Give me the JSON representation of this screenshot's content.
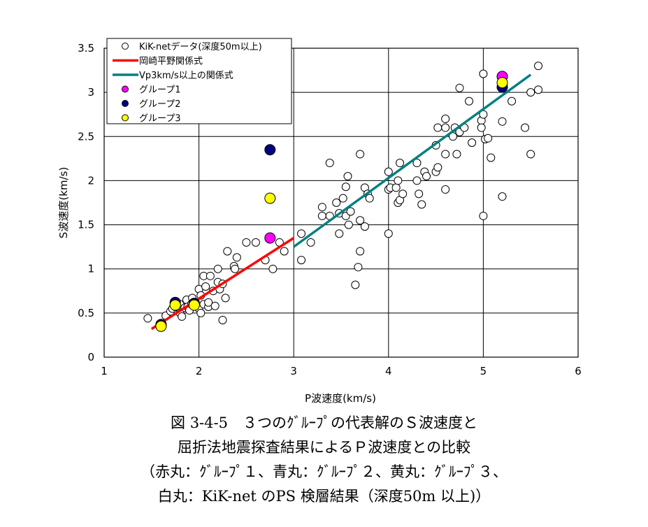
{
  "chart_data": {
    "type": "scatter",
    "xlabel": "P波速度(km/s)",
    "ylabel": "S波速度(km/s)",
    "xlim": [
      1,
      6
    ],
    "ylim": [
      0,
      3.5
    ],
    "xticks": [
      "1",
      "2",
      "3",
      "4",
      "5",
      "6"
    ],
    "yticks": [
      "0",
      "0.5",
      "1",
      "1.5",
      "2",
      "2.5",
      "3",
      "3.5"
    ],
    "grid": true,
    "legend_position": "top-left",
    "legend": [
      "KiK-netデータ(深度50m以上)",
      "岡崎平野関係式",
      "Vp3km/s以上の関係式",
      "グループ1",
      "グループ2",
      "グループ3"
    ],
    "series": [
      {
        "name": "KiK-netデータ(深度50m以上)",
        "marker": "open-circle",
        "color": "#000000",
        "points": [
          [
            1.46,
            0.44
          ],
          [
            1.6,
            0.38
          ],
          [
            1.65,
            0.47
          ],
          [
            1.7,
            0.52
          ],
          [
            1.72,
            0.55
          ],
          [
            1.75,
            0.57
          ],
          [
            1.8,
            0.6
          ],
          [
            1.8,
            0.5
          ],
          [
            1.82,
            0.46
          ],
          [
            1.85,
            0.56
          ],
          [
            1.87,
            0.65
          ],
          [
            1.88,
            0.57
          ],
          [
            1.9,
            0.53
          ],
          [
            1.92,
            0.6
          ],
          [
            1.93,
            0.67
          ],
          [
            1.95,
            0.62
          ],
          [
            1.97,
            0.58
          ],
          [
            2.0,
            0.55
          ],
          [
            2.0,
            0.77
          ],
          [
            2.02,
            0.7
          ],
          [
            2.02,
            0.5
          ],
          [
            2.05,
            0.6
          ],
          [
            2.05,
            0.92
          ],
          [
            2.07,
            0.8
          ],
          [
            2.1,
            0.57
          ],
          [
            2.1,
            0.62
          ],
          [
            2.12,
            0.92
          ],
          [
            2.15,
            0.75
          ],
          [
            2.17,
            0.58
          ],
          [
            2.2,
            0.85
          ],
          [
            2.2,
            1.0
          ],
          [
            2.22,
            0.77
          ],
          [
            2.25,
            0.83
          ],
          [
            2.25,
            0.42
          ],
          [
            2.28,
            0.67
          ],
          [
            2.3,
            1.2
          ],
          [
            2.37,
            1.03
          ],
          [
            2.4,
            1.13
          ],
          [
            2.38,
            1.0
          ],
          [
            2.5,
            1.3
          ],
          [
            2.6,
            1.3
          ],
          [
            2.7,
            1.1
          ],
          [
            2.78,
            1.0
          ],
          [
            2.85,
            1.3
          ],
          [
            2.9,
            1.2
          ],
          [
            3.08,
            1.4
          ],
          [
            3.08,
            1.1
          ],
          [
            3.18,
            1.3
          ],
          [
            3.3,
            1.7
          ],
          [
            3.3,
            1.6
          ],
          [
            3.38,
            1.6
          ],
          [
            3.38,
            2.2
          ],
          [
            3.45,
            1.75
          ],
          [
            3.48,
            1.4
          ],
          [
            3.48,
            1.63
          ],
          [
            3.52,
            1.8
          ],
          [
            3.55,
            1.6
          ],
          [
            3.55,
            1.93
          ],
          [
            3.57,
            2.05
          ],
          [
            3.58,
            1.5
          ],
          [
            3.6,
            1.65
          ],
          [
            3.65,
            0.82
          ],
          [
            3.68,
            1.02
          ],
          [
            3.7,
            2.3
          ],
          [
            3.7,
            1.2
          ],
          [
            3.7,
            1.55
          ],
          [
            3.75,
            1.48
          ],
          [
            3.75,
            1.92
          ],
          [
            3.78,
            1.85
          ],
          [
            3.8,
            1.8
          ],
          [
            4.0,
            1.4
          ],
          [
            4.0,
            1.9
          ],
          [
            4.02,
            1.92
          ],
          [
            4.0,
            2.1
          ],
          [
            4.08,
            1.92
          ],
          [
            4.1,
            2.0
          ],
          [
            4.1,
            1.75
          ],
          [
            4.12,
            1.78
          ],
          [
            4.12,
            2.2
          ],
          [
            4.15,
            1.85
          ],
          [
            4.3,
            2.2
          ],
          [
            4.3,
            2.0
          ],
          [
            4.32,
            1.85
          ],
          [
            4.35,
            1.73
          ],
          [
            4.38,
            2.1
          ],
          [
            4.4,
            2.05
          ],
          [
            4.5,
            2.1
          ],
          [
            4.5,
            2.4
          ],
          [
            4.52,
            2.15
          ],
          [
            4.52,
            2.6
          ],
          [
            4.6,
            2.7
          ],
          [
            4.6,
            2.3
          ],
          [
            4.6,
            2.6
          ],
          [
            4.6,
            1.9
          ],
          [
            4.68,
            2.5
          ],
          [
            4.7,
            2.6
          ],
          [
            4.72,
            2.3
          ],
          [
            4.75,
            2.55
          ],
          [
            4.75,
            3.05
          ],
          [
            4.8,
            2.6
          ],
          [
            4.85,
            2.9
          ],
          [
            4.88,
            2.43
          ],
          [
            4.98,
            2.68
          ],
          [
            4.98,
            2.6
          ],
          [
            5.0,
            1.6
          ],
          [
            5.0,
            2.75
          ],
          [
            5.02,
            2.47
          ],
          [
            5.0,
            3.21
          ],
          [
            5.05,
            2.48
          ],
          [
            5.08,
            2.26
          ],
          [
            5.2,
            2.67
          ],
          [
            5.2,
            1.82
          ],
          [
            5.3,
            2.9
          ],
          [
            5.44,
            2.6
          ],
          [
            5.5,
            2.3
          ],
          [
            5.5,
            3.0
          ],
          [
            5.58,
            3.3
          ],
          [
            5.58,
            3.03
          ]
        ]
      },
      {
        "name": "グループ1",
        "marker": "filled-circle",
        "color": "#ff00ff",
        "points": [
          [
            1.6,
            0.37
          ],
          [
            1.75,
            0.6
          ],
          [
            2.75,
            1.35
          ],
          [
            5.2,
            3.18
          ]
        ]
      },
      {
        "name": "グループ2",
        "marker": "filled-circle",
        "color": "#000080",
        "points": [
          [
            1.6,
            0.36
          ],
          [
            1.75,
            0.62
          ],
          [
            1.95,
            0.61
          ],
          [
            2.75,
            2.35
          ],
          [
            5.2,
            3.06
          ]
        ]
      },
      {
        "name": "グループ3",
        "marker": "filled-circle",
        "color": "#ffff00",
        "points": [
          [
            1.6,
            0.35
          ],
          [
            1.75,
            0.59
          ],
          [
            1.95,
            0.59
          ],
          [
            2.75,
            1.8
          ],
          [
            5.2,
            3.11
          ]
        ]
      }
    ],
    "lines": [
      {
        "name": "岡崎平野関係式",
        "color": "#ff0000",
        "points": [
          [
            1.5,
            0.32
          ],
          [
            3.0,
            1.35
          ]
        ]
      },
      {
        "name": "Vp3km/s以上の関係式",
        "color": "#008080",
        "points": [
          [
            3.0,
            1.25
          ],
          [
            5.5,
            3.2
          ]
        ]
      }
    ]
  },
  "caption": {
    "line1": "図 3-4-5　３つのｸﾞﾙｰﾌﾟの代表解のＳ波速度と",
    "line2": "屈折法地震探査結果によるＰ波速度との比較",
    "line3": "（赤丸：ｸﾞﾙｰﾌﾟ１、青丸：ｸﾞﾙｰﾌﾟ２、黄丸：ｸﾞﾙｰﾌﾟ３、",
    "line4": "白丸：KiK-net のPS 検層結果（深度50m 以上)）"
  }
}
